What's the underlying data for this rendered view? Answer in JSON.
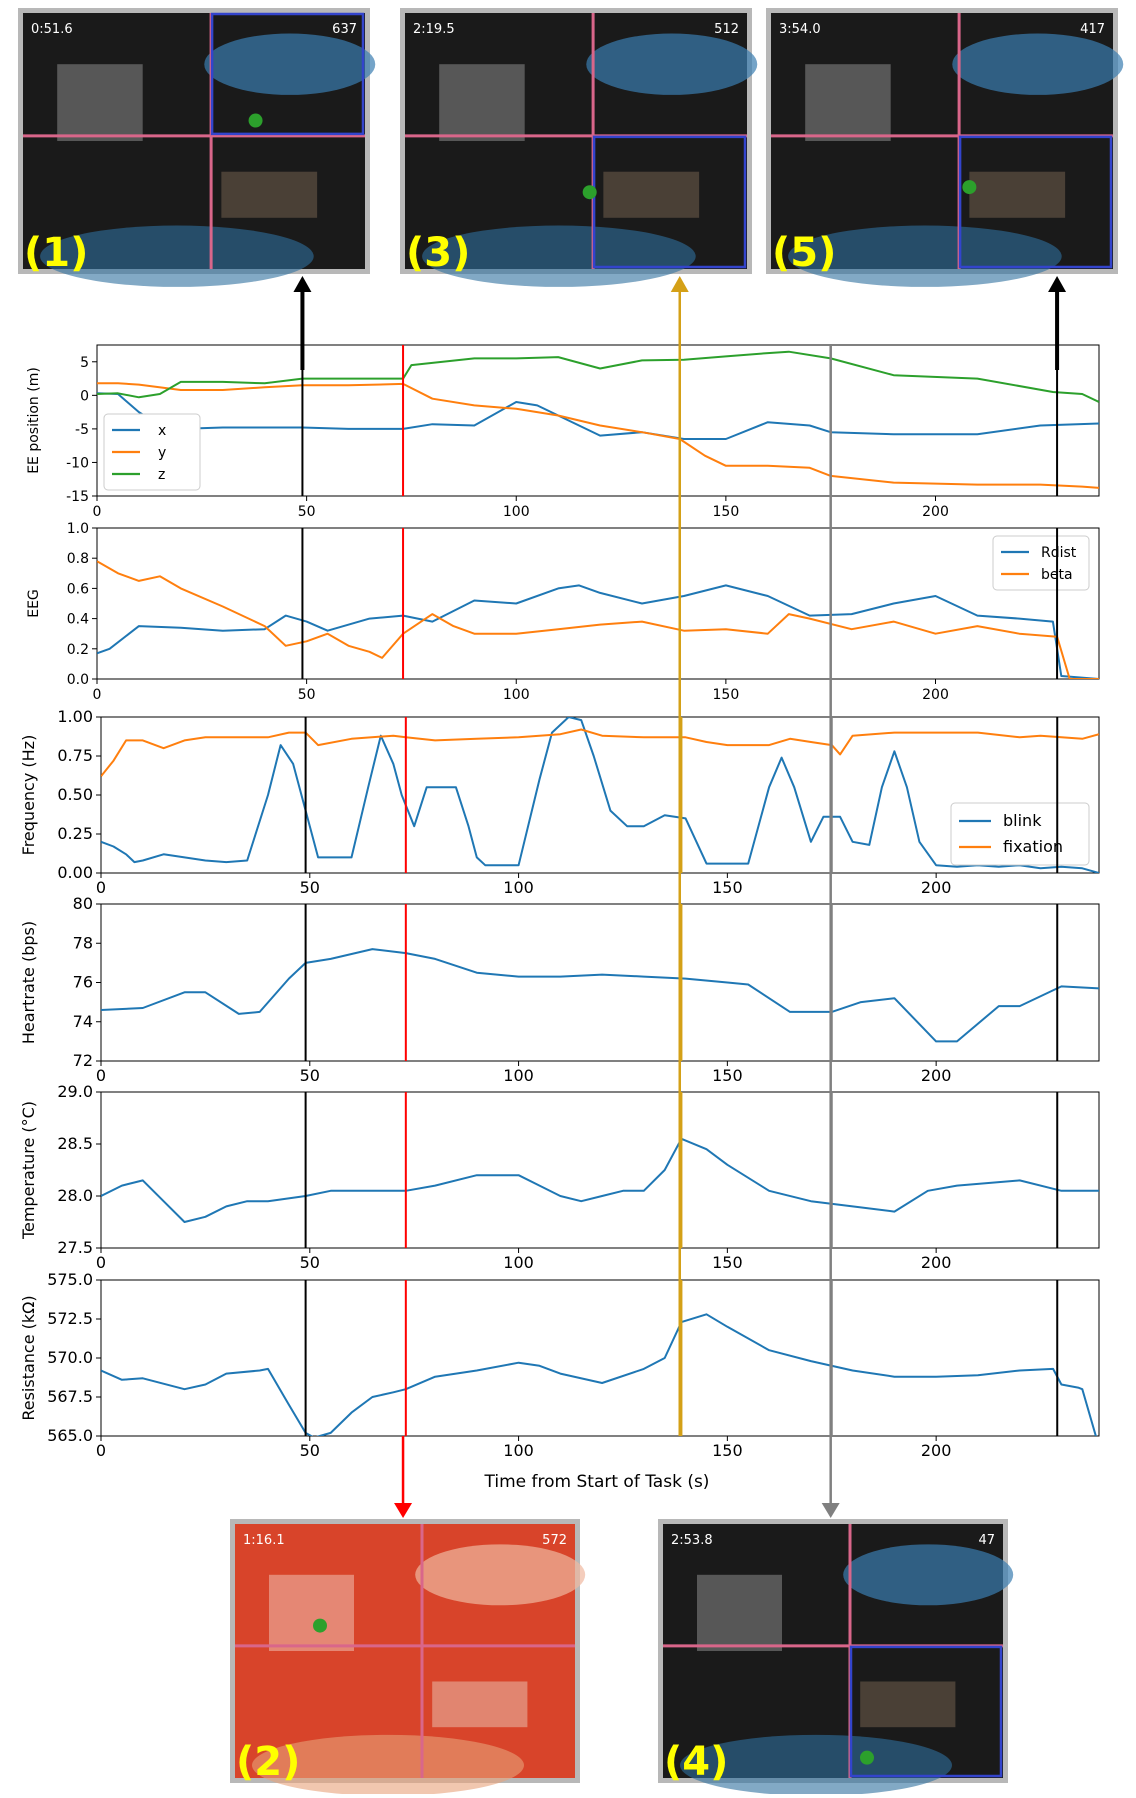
{
  "colors": {
    "series_blue": "#1f77b4",
    "series_orange": "#ff7f0e",
    "series_green": "#2ca02c",
    "marker_black": "#000000",
    "marker_red": "#ff0000",
    "marker_gold": "#d4a017",
    "marker_gray": "#808080",
    "thumb_label": "#ffff00",
    "thumb_frame": "#b8b8b8",
    "divider_pink": "#d9668a",
    "divider_blue": "#3344cc"
  },
  "xaxis_label": "Time from Start of Task (s)",
  "markers": [
    {
      "name": "marker-1",
      "t": 49,
      "color": "#000000",
      "thumb": 0
    },
    {
      "name": "marker-2",
      "t": 73,
      "color": "#ff0000",
      "thumb": 1
    },
    {
      "name": "marker-3",
      "t": 139,
      "color": "#d4a017",
      "thumb": 2
    },
    {
      "name": "marker-4",
      "t": 175,
      "color": "#808080",
      "thumb": 3
    },
    {
      "name": "marker-5",
      "t": 229,
      "color": "#000000",
      "thumb": 4
    }
  ],
  "thumbnails": [
    {
      "label": "(1)",
      "timestamp": "0:51.6",
      "counter": "637",
      "tint": "#1a1a1a"
    },
    {
      "label": "(2)",
      "timestamp": "1:16.1",
      "counter": "572",
      "tint": "#d8442a"
    },
    {
      "label": "(3)",
      "timestamp": "2:19.5",
      "counter": "512",
      "tint": "#1a1a1a"
    },
    {
      "label": "(4)",
      "timestamp": "2:53.8",
      "counter": "47",
      "tint": "#1a1a1a"
    },
    {
      "label": "(5)",
      "timestamp": "3:54.0",
      "counter": "417",
      "tint": "#1a1a1a"
    }
  ],
  "chart_data": [
    {
      "type": "line",
      "title": "",
      "xlabel": "",
      "ylabel": "EE position (m)",
      "xlim": [
        0,
        239
      ],
      "ylim": [
        -15,
        7.5
      ],
      "yticks": [
        -15,
        -10,
        -5,
        0,
        5
      ],
      "xticks": [
        0,
        50,
        100,
        150,
        200
      ],
      "legend": "bottom-left",
      "series": [
        {
          "name": "x",
          "color": "#1f77b4",
          "x": [
            0,
            5,
            10,
            15,
            20,
            30,
            40,
            49,
            60,
            73,
            80,
            90,
            100,
            105,
            110,
            120,
            130,
            140,
            150,
            160,
            170,
            175,
            190,
            210,
            225,
            239
          ],
          "y": [
            0.3,
            0.2,
            -2.5,
            -4.5,
            -5.0,
            -4.8,
            -4.8,
            -4.8,
            -5.0,
            -5.0,
            -4.3,
            -4.5,
            -1.0,
            -1.5,
            -3.0,
            -6.0,
            -5.5,
            -6.5,
            -6.5,
            -4.0,
            -4.5,
            -5.5,
            -5.8,
            -5.8,
            -4.5,
            -4.2
          ]
        },
        {
          "name": "y",
          "color": "#ff7f0e",
          "x": [
            0,
            5,
            10,
            20,
            30,
            40,
            49,
            60,
            73,
            80,
            90,
            100,
            110,
            120,
            130,
            139,
            145,
            150,
            160,
            170,
            175,
            190,
            210,
            225,
            235,
            239
          ],
          "y": [
            1.8,
            1.8,
            1.6,
            0.8,
            0.8,
            1.2,
            1.5,
            1.5,
            1.7,
            -0.5,
            -1.5,
            -2.0,
            -3.0,
            -4.5,
            -5.5,
            -6.5,
            -9.0,
            -10.5,
            -10.5,
            -10.8,
            -12.0,
            -13.0,
            -13.3,
            -13.3,
            -13.6,
            -13.8
          ]
        },
        {
          "name": "z",
          "color": "#2ca02c",
          "x": [
            0,
            5,
            10,
            15,
            20,
            30,
            40,
            49,
            60,
            73,
            75,
            90,
            100,
            110,
            120,
            130,
            140,
            150,
            160,
            165,
            175,
            190,
            210,
            228,
            235,
            239
          ],
          "y": [
            0.2,
            0.3,
            -0.3,
            0.2,
            2.0,
            2.0,
            1.8,
            2.5,
            2.5,
            2.5,
            4.5,
            5.5,
            5.5,
            5.7,
            4.0,
            5.2,
            5.3,
            5.8,
            6.3,
            6.5,
            5.5,
            3.0,
            2.5,
            0.5,
            0.2,
            -1.0
          ]
        }
      ]
    },
    {
      "type": "line",
      "title": "",
      "xlabel": "",
      "ylabel": "EEG",
      "xlim": [
        0,
        239
      ],
      "ylim": [
        0,
        1.0
      ],
      "yticks": [
        0.0,
        0.2,
        0.4,
        0.6,
        0.8,
        1.0
      ],
      "yticklabels": [
        "0.0",
        "0.2",
        "0.4",
        "0.6",
        "0.8",
        "1.0"
      ],
      "xticks": [
        0,
        50,
        100,
        150,
        200
      ],
      "legend": "top-right",
      "series": [
        {
          "name": "Rdist",
          "color": "#1f77b4",
          "x": [
            0,
            3,
            10,
            20,
            30,
            40,
            45,
            50,
            55,
            65,
            73,
            80,
            90,
            100,
            110,
            115,
            120,
            130,
            140,
            150,
            160,
            170,
            180,
            190,
            200,
            210,
            220,
            228,
            230,
            239
          ],
          "y": [
            0.17,
            0.2,
            0.35,
            0.34,
            0.32,
            0.33,
            0.42,
            0.38,
            0.32,
            0.4,
            0.42,
            0.38,
            0.52,
            0.5,
            0.6,
            0.62,
            0.57,
            0.5,
            0.55,
            0.62,
            0.55,
            0.42,
            0.43,
            0.5,
            0.55,
            0.42,
            0.4,
            0.38,
            0.02,
            0.0
          ]
        },
        {
          "name": "beta",
          "color": "#ff7f0e",
          "x": [
            0,
            5,
            10,
            15,
            20,
            30,
            40,
            45,
            50,
            55,
            60,
            65,
            68,
            73,
            80,
            85,
            90,
            100,
            110,
            120,
            130,
            140,
            150,
            160,
            165,
            170,
            180,
            190,
            200,
            210,
            220,
            229,
            232,
            239
          ],
          "y": [
            0.78,
            0.7,
            0.65,
            0.68,
            0.6,
            0.48,
            0.35,
            0.22,
            0.25,
            0.3,
            0.22,
            0.18,
            0.14,
            0.3,
            0.43,
            0.35,
            0.3,
            0.3,
            0.33,
            0.36,
            0.38,
            0.32,
            0.33,
            0.3,
            0.43,
            0.4,
            0.33,
            0.38,
            0.3,
            0.35,
            0.3,
            0.28,
            0.0,
            0.0
          ]
        }
      ]
    },
    {
      "type": "line",
      "title": "",
      "xlabel": "",
      "ylabel": "Frequency (Hz)",
      "xlim": [
        0,
        239
      ],
      "ylim": [
        0,
        1.0
      ],
      "yticks": [
        0.0,
        0.25,
        0.5,
        0.75,
        1.0
      ],
      "yticklabels": [
        "0.00",
        "0.25",
        "0.50",
        "0.75",
        "1.00"
      ],
      "xticks": [
        0,
        50,
        100,
        150,
        200
      ],
      "legend": "bottom-right",
      "series": [
        {
          "name": "blink",
          "color": "#1f77b4",
          "x": [
            0,
            3,
            6,
            8,
            10,
            15,
            20,
            25,
            30,
            35,
            40,
            43,
            46,
            50,
            52,
            55,
            60,
            64,
            67,
            70,
            72,
            75,
            78,
            82,
            85,
            88,
            90,
            92,
            95,
            100,
            105,
            108,
            112,
            115,
            118,
            122,
            126,
            130,
            135,
            140,
            145,
            150,
            155,
            160,
            163,
            166,
            170,
            173,
            177,
            180,
            184,
            187,
            190,
            193,
            196,
            200,
            205,
            210,
            215,
            220,
            225,
            230,
            235,
            239
          ],
          "y": [
            0.2,
            0.17,
            0.12,
            0.07,
            0.08,
            0.12,
            0.1,
            0.08,
            0.07,
            0.08,
            0.5,
            0.82,
            0.7,
            0.3,
            0.1,
            0.1,
            0.1,
            0.55,
            0.88,
            0.7,
            0.5,
            0.3,
            0.55,
            0.55,
            0.55,
            0.3,
            0.1,
            0.05,
            0.05,
            0.05,
            0.6,
            0.9,
            1.0,
            0.98,
            0.75,
            0.4,
            0.3,
            0.3,
            0.37,
            0.35,
            0.06,
            0.06,
            0.06,
            0.55,
            0.74,
            0.55,
            0.2,
            0.36,
            0.36,
            0.2,
            0.18,
            0.55,
            0.78,
            0.55,
            0.2,
            0.05,
            0.04,
            0.05,
            0.04,
            0.05,
            0.03,
            0.04,
            0.03,
            0.0
          ]
        },
        {
          "name": "fixation",
          "color": "#ff7f0e",
          "x": [
            0,
            3,
            6,
            10,
            15,
            20,
            25,
            30,
            40,
            45,
            49,
            52,
            60,
            70,
            73,
            80,
            90,
            100,
            110,
            115,
            120,
            130,
            140,
            145,
            150,
            160,
            165,
            170,
            175,
            177,
            180,
            190,
            200,
            210,
            220,
            225,
            230,
            235,
            239
          ],
          "y": [
            0.62,
            0.72,
            0.85,
            0.85,
            0.8,
            0.85,
            0.87,
            0.87,
            0.87,
            0.9,
            0.9,
            0.82,
            0.86,
            0.88,
            0.87,
            0.85,
            0.86,
            0.87,
            0.89,
            0.92,
            0.88,
            0.87,
            0.87,
            0.84,
            0.82,
            0.82,
            0.86,
            0.84,
            0.82,
            0.76,
            0.88,
            0.9,
            0.9,
            0.9,
            0.87,
            0.88,
            0.87,
            0.86,
            0.89
          ]
        }
      ]
    },
    {
      "type": "line",
      "title": "",
      "xlabel": "",
      "ylabel": "Heartrate (bps)",
      "xlim": [
        0,
        239
      ],
      "ylim": [
        72,
        80
      ],
      "yticks": [
        72,
        74,
        76,
        78,
        80
      ],
      "xticks": [
        0,
        50,
        100,
        150,
        200
      ],
      "legend": "none",
      "series": [
        {
          "name": "heartrate",
          "color": "#1f77b4",
          "x": [
            0,
            10,
            20,
            25,
            33,
            38,
            45,
            49,
            55,
            65,
            73,
            80,
            90,
            100,
            110,
            120,
            130,
            140,
            150,
            155,
            165,
            170,
            175,
            182,
            190,
            200,
            205,
            215,
            220,
            230,
            239
          ],
          "y": [
            74.6,
            74.7,
            75.5,
            75.5,
            74.4,
            74.5,
            76.2,
            77.0,
            77.2,
            77.7,
            77.5,
            77.2,
            76.5,
            76.3,
            76.3,
            76.4,
            76.3,
            76.2,
            76.0,
            75.9,
            74.5,
            74.5,
            74.5,
            75.0,
            75.2,
            73.0,
            73.0,
            74.8,
            74.8,
            75.8,
            75.7
          ]
        }
      ]
    },
    {
      "type": "line",
      "title": "",
      "xlabel": "",
      "ylabel": "Temperature (°C)",
      "xlim": [
        0,
        239
      ],
      "ylim": [
        27.5,
        29.0
      ],
      "yticks": [
        27.5,
        28.0,
        28.5,
        29.0
      ],
      "yticklabels": [
        "27.5",
        "28.0",
        "28.5",
        "29.0"
      ],
      "xticks": [
        0,
        50,
        100,
        150,
        200
      ],
      "legend": "none",
      "series": [
        {
          "name": "temperature",
          "color": "#1f77b4",
          "x": [
            0,
            5,
            10,
            15,
            20,
            25,
            30,
            35,
            40,
            49,
            55,
            60,
            73,
            80,
            90,
            100,
            105,
            110,
            115,
            120,
            125,
            130,
            135,
            139,
            145,
            150,
            160,
            170,
            180,
            190,
            198,
            205,
            220,
            230,
            239
          ],
          "y": [
            28.0,
            28.1,
            28.15,
            27.95,
            27.75,
            27.8,
            27.9,
            27.95,
            27.95,
            28.0,
            28.05,
            28.05,
            28.05,
            28.1,
            28.2,
            28.2,
            28.1,
            28.0,
            27.95,
            28.0,
            28.05,
            28.05,
            28.25,
            28.55,
            28.45,
            28.3,
            28.05,
            27.95,
            27.9,
            27.85,
            28.05,
            28.1,
            28.15,
            28.05,
            28.05
          ]
        }
      ]
    },
    {
      "type": "line",
      "title": "",
      "xlabel": "Time from Start of Task (s)",
      "ylabel": "Resistance (kΩ)",
      "xlim": [
        0,
        239
      ],
      "ylim": [
        565.0,
        575.0
      ],
      "yticks": [
        565.0,
        567.5,
        570.0,
        572.5,
        575.0
      ],
      "yticklabels": [
        "565.0",
        "567.5",
        "570.0",
        "572.5",
        "575.0"
      ],
      "xticks": [
        0,
        50,
        100,
        150,
        200
      ],
      "legend": "none",
      "series": [
        {
          "name": "resistance",
          "color": "#1f77b4",
          "x": [
            0,
            5,
            10,
            20,
            25,
            30,
            38,
            40,
            45,
            49,
            51,
            55,
            60,
            65,
            70,
            73,
            80,
            90,
            100,
            105,
            110,
            120,
            130,
            135,
            139,
            145,
            150,
            160,
            170,
            180,
            190,
            200,
            210,
            220,
            228,
            230,
            234,
            235,
            239
          ],
          "y": [
            569.2,
            568.6,
            568.7,
            568.0,
            568.3,
            569.0,
            569.2,
            569.3,
            567.0,
            565.2,
            564.9,
            565.2,
            566.5,
            567.5,
            567.8,
            568.0,
            568.8,
            569.2,
            569.7,
            569.5,
            569.0,
            568.4,
            569.3,
            570.0,
            572.3,
            572.8,
            572.0,
            570.5,
            569.8,
            569.2,
            568.8,
            568.8,
            568.9,
            569.2,
            569.3,
            568.3,
            568.1,
            568.0,
            564.3
          ]
        }
      ]
    }
  ]
}
